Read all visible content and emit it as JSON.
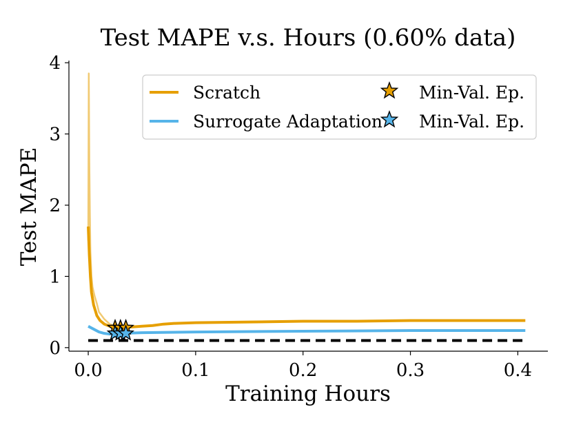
{
  "chart_data": {
    "type": "line",
    "title": "Test MAPE v.s. Hours (0.60% data)",
    "xlabel": "Training Hours",
    "ylabel": "Test MAPE",
    "xlim": [
      -0.018,
      0.428
    ],
    "ylim": [
      -0.05,
      4.03
    ],
    "xticks": [
      0.0,
      0.1,
      0.2,
      0.3,
      0.4
    ],
    "xtick_labels": [
      "0.0",
      "0.1",
      "0.2",
      "0.3",
      "0.4"
    ],
    "yticks": [
      0,
      1,
      2,
      3,
      4
    ],
    "ytick_labels": [
      "0",
      "1",
      "2",
      "3",
      "4"
    ],
    "grid": false,
    "legend_position": "top-right",
    "colors": {
      "scratch": "#E69F00",
      "surrogate": "#56B4E9",
      "reference": "#000000"
    },
    "series": [
      {
        "name": "Scratch",
        "color": "#E69F00",
        "x": [
          0.0,
          0.001,
          0.002,
          0.003,
          0.005,
          0.008,
          0.011,
          0.015,
          0.02,
          0.025,
          0.03,
          0.035,
          0.04,
          0.05,
          0.06,
          0.07,
          0.08,
          0.1,
          0.15,
          0.2,
          0.25,
          0.3,
          0.35,
          0.407
        ],
        "values": [
          1.7,
          1.3,
          1.0,
          0.78,
          0.6,
          0.45,
          0.38,
          0.33,
          0.3,
          0.29,
          0.29,
          0.29,
          0.29,
          0.3,
          0.31,
          0.33,
          0.34,
          0.35,
          0.36,
          0.37,
          0.37,
          0.38,
          0.38,
          0.38
        ]
      },
      {
        "name": "Scratch (raw)",
        "color": "#E69F00",
        "x": [
          0.0,
          0.0005,
          0.001,
          0.0015,
          0.002,
          0.003,
          0.004,
          0.006,
          0.008,
          0.01,
          0.012,
          0.015,
          0.02,
          0.025,
          0.03
        ],
        "values": [
          1.5,
          3.85,
          2.6,
          1.9,
          1.35,
          1.0,
          0.85,
          0.72,
          0.62,
          0.5,
          0.46,
          0.4,
          0.33,
          0.3,
          0.29
        ]
      },
      {
        "name": "Surrogate Adaptation",
        "color": "#56B4E9",
        "x": [
          0.0,
          0.005,
          0.01,
          0.015,
          0.02,
          0.03,
          0.05,
          0.1,
          0.2,
          0.3,
          0.407
        ],
        "values": [
          0.3,
          0.26,
          0.22,
          0.2,
          0.19,
          0.2,
          0.21,
          0.22,
          0.23,
          0.24,
          0.24
        ]
      }
    ],
    "min_val_markers": [
      {
        "name": "Min-Val. Ep.",
        "series": "Scratch",
        "color": "#E69F00",
        "points": [
          [
            0.025,
            0.28
          ],
          [
            0.03,
            0.28
          ],
          [
            0.035,
            0.28
          ]
        ]
      },
      {
        "name": "Min-Val. Ep.",
        "series": "Surrogate Adaptation",
        "color": "#56B4E9",
        "points": [
          [
            0.025,
            0.2
          ],
          [
            0.03,
            0.2
          ],
          [
            0.035,
            0.2
          ]
        ]
      }
    ],
    "reference_line": {
      "y": 0.1,
      "x_range": [
        0.0,
        0.407
      ],
      "style": "dashed",
      "color": "#000000"
    },
    "legend": {
      "entries": [
        {
          "label": "Scratch",
          "kind": "line",
          "color": "#E69F00"
        },
        {
          "label": "Min-Val. Ep.",
          "kind": "star",
          "color": "#E69F00"
        },
        {
          "label": "Surrogate Adaptation",
          "kind": "line",
          "color": "#56B4E9"
        },
        {
          "label": "Min-Val. Ep.",
          "kind": "star",
          "color": "#56B4E9"
        }
      ]
    }
  }
}
